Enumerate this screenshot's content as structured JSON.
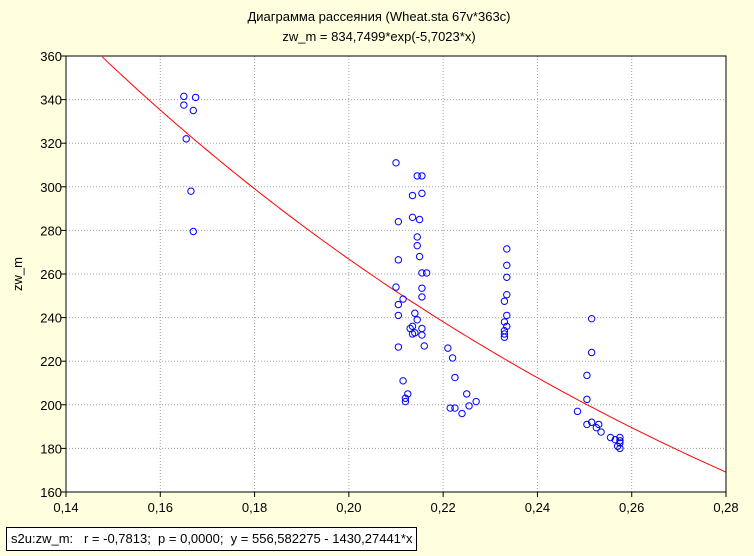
{
  "chart_data": {
    "type": "scatter",
    "title": "Диаграмма рассеяния (Wheat.sta 67v*363c)",
    "subtitle": "zw_m = 834,7499*exp(-5,7023*x)",
    "xlabel": "",
    "ylabel": "zw_m",
    "xlim": [
      0.14,
      0.28
    ],
    "ylim": [
      160,
      360
    ],
    "xticks": [
      "0,14",
      "0,16",
      "0,18",
      "0,20",
      "0,22",
      "0,24",
      "0,26",
      "0,28"
    ],
    "xtick_values": [
      0.14,
      0.16,
      0.18,
      0.2,
      0.22,
      0.24,
      0.26,
      0.28
    ],
    "yticks": [
      "160",
      "180",
      "200",
      "220",
      "240",
      "260",
      "280",
      "300",
      "320",
      "340",
      "360"
    ],
    "ytick_values": [
      160,
      180,
      200,
      220,
      240,
      260,
      280,
      300,
      320,
      340,
      360
    ],
    "grid": true,
    "point_color": "#0000ff",
    "fit_color": "#ff0000",
    "fit": {
      "a": 834.7499,
      "b": -5.7023
    },
    "points": [
      [
        0.165,
        341.5
      ],
      [
        0.165,
        337.5
      ],
      [
        0.1675,
        341
      ],
      [
        0.167,
        335
      ],
      [
        0.1655,
        322
      ],
      [
        0.1665,
        298
      ],
      [
        0.167,
        279.5
      ],
      [
        0.21,
        311
      ],
      [
        0.2105,
        284
      ],
      [
        0.2105,
        266.5
      ],
      [
        0.21,
        254
      ],
      [
        0.2105,
        246
      ],
      [
        0.2105,
        241
      ],
      [
        0.2105,
        226.5
      ],
      [
        0.2115,
        248.5
      ],
      [
        0.2145,
        305
      ],
      [
        0.2155,
        305
      ],
      [
        0.2155,
        297
      ],
      [
        0.2135,
        296
      ],
      [
        0.2135,
        286
      ],
      [
        0.215,
        285
      ],
      [
        0.2145,
        277
      ],
      [
        0.2145,
        273
      ],
      [
        0.215,
        268
      ],
      [
        0.2155,
        260.5
      ],
      [
        0.2165,
        260.5
      ],
      [
        0.2155,
        253.5
      ],
      [
        0.2155,
        249.5
      ],
      [
        0.214,
        242
      ],
      [
        0.2145,
        239
      ],
      [
        0.2135,
        236
      ],
      [
        0.213,
        235
      ],
      [
        0.214,
        233
      ],
      [
        0.2135,
        232.5
      ],
      [
        0.2155,
        235
      ],
      [
        0.2155,
        232
      ],
      [
        0.216,
        227
      ],
      [
        0.2115,
        211
      ],
      [
        0.2125,
        205
      ],
      [
        0.212,
        203
      ],
      [
        0.212,
        201.5
      ],
      [
        0.221,
        226
      ],
      [
        0.222,
        221.5
      ],
      [
        0.2225,
        212.5
      ],
      [
        0.2215,
        198.5
      ],
      [
        0.2225,
        198.5
      ],
      [
        0.225,
        205
      ],
      [
        0.224,
        196
      ],
      [
        0.2255,
        199.5
      ],
      [
        0.227,
        201.5
      ],
      [
        0.2335,
        271.5
      ],
      [
        0.2335,
        264
      ],
      [
        0.2335,
        258.5
      ],
      [
        0.2335,
        250.5
      ],
      [
        0.233,
        247.5
      ],
      [
        0.2335,
        241
      ],
      [
        0.233,
        238
      ],
      [
        0.2335,
        236
      ],
      [
        0.233,
        234
      ],
      [
        0.233,
        232.5
      ],
      [
        0.233,
        231
      ],
      [
        0.2515,
        239.5
      ],
      [
        0.2515,
        224
      ],
      [
        0.2505,
        213.5
      ],
      [
        0.2505,
        202.5
      ],
      [
        0.2485,
        197
      ],
      [
        0.2505,
        191
      ],
      [
        0.2515,
        192
      ],
      [
        0.253,
        191
      ],
      [
        0.2525,
        189.5
      ],
      [
        0.2535,
        187.5
      ],
      [
        0.2555,
        185
      ],
      [
        0.2565,
        184
      ],
      [
        0.2575,
        185
      ],
      [
        0.2575,
        183.5
      ],
      [
        0.2575,
        182.5
      ],
      [
        0.257,
        181
      ],
      [
        0.2575,
        180
      ]
    ]
  },
  "caption": "s2u:zw_m:   r = -0,7813;  p = 0,0000;  y = 556,582275 - 1430,27441*x"
}
